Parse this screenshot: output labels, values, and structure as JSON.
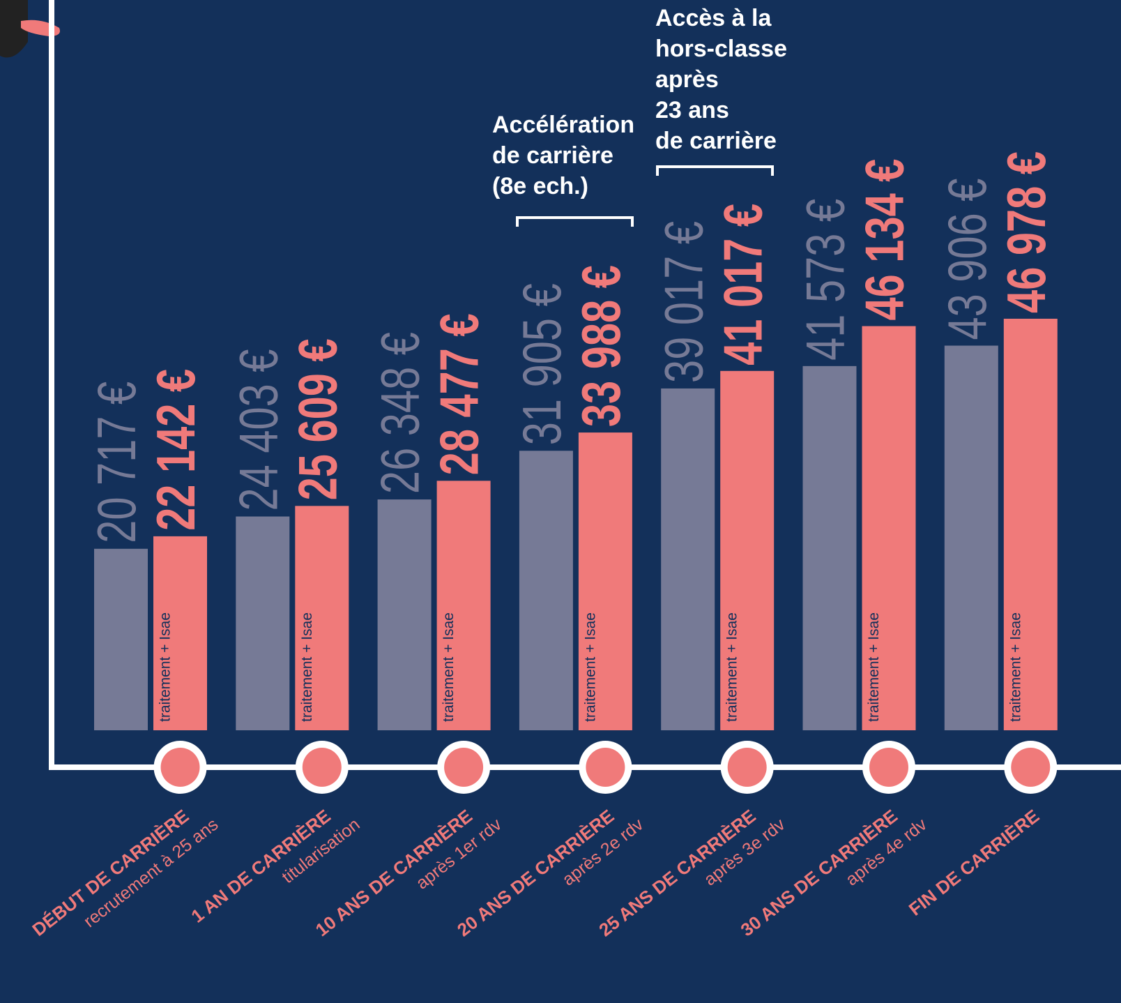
{
  "chart_data": {
    "type": "bar",
    "categories": [
      "DÉBUT DE CARRIÈRE",
      "1 AN DE CARRIÈRE",
      "10 ANS DE CARRIÈRE",
      "20 ANS DE CARRIÈRE",
      "25 ANS DE CARRIÈRE",
      "30 ANS DE CARRIÈRE",
      "FIN DE CARRIÈRE"
    ],
    "category_notes": [
      "recrutement à 25 ans",
      "titularisation",
      "après 1er rdv",
      "après 2e rdv",
      "après 3e rdv",
      "après 4e rdv",
      null
    ],
    "series": [
      {
        "color": "#767a96",
        "values": [
          20717,
          24403,
          26348,
          31905,
          39017,
          41573,
          43906
        ],
        "value_labels": [
          "20 717 €",
          "24 403 €",
          "26 348 €",
          "31 905 €",
          "39 017 €",
          "41 573 €",
          "43 906 €"
        ]
      },
      {
        "name": "traitement + Isae",
        "color": "#f07a7a",
        "values": [
          22142,
          25609,
          28477,
          33988,
          41017,
          46134,
          46978
        ],
        "value_labels": [
          "22 142 €",
          "25 609 €",
          "28 477 €",
          "33 988 €",
          "41 017 €",
          "46 134 €",
          "46 978 €"
        ]
      }
    ],
    "annotations": [
      [
        "Accélération",
        "de carrière",
        "(8e ech.)"
      ],
      [
        "Accès à la",
        "hors-classe",
        "après",
        "23 ans",
        "de carrière"
      ]
    ],
    "ylim": [
      0,
      50000
    ]
  }
}
